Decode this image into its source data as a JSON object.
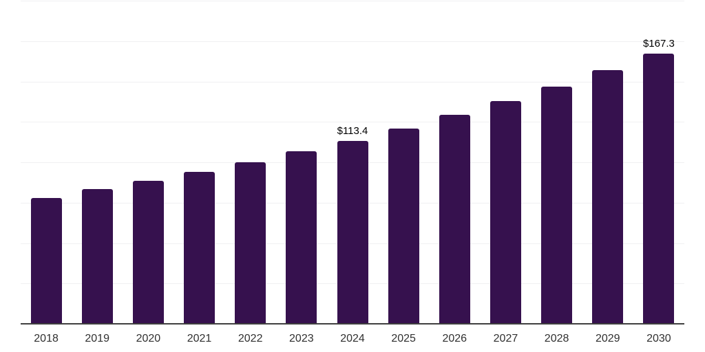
{
  "chart_data": {
    "type": "bar",
    "title": "",
    "xlabel": "",
    "ylabel": "",
    "categories": [
      "2018",
      "2019",
      "2020",
      "2021",
      "2022",
      "2023",
      "2024",
      "2025",
      "2026",
      "2027",
      "2028",
      "2029",
      "2030"
    ],
    "values": [
      78.0,
      83.3,
      88.6,
      94.2,
      100.2,
      106.7,
      113.4,
      121.0,
      129.5,
      137.8,
      146.8,
      156.9,
      167.3
    ],
    "annotations": [
      {
        "category": "2024",
        "text": "$113.4"
      },
      {
        "category": "2030",
        "text": "$167.3"
      }
    ],
    "ylim": [
      0,
      200
    ],
    "grid": true,
    "grid_step": 25,
    "y_tick_labels_visible": false,
    "legend": false,
    "colors": {
      "bar": "#36114e",
      "gridline": "#f0f0f2",
      "axis_line": "#3f3f3f",
      "tick_label": "#303030",
      "value_label": "#000000",
      "background": "#ffffff"
    }
  }
}
